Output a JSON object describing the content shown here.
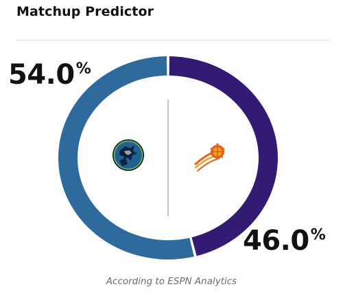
{
  "widget": {
    "title": "Matchup Predictor",
    "footnote": "According to ESPN Analytics"
  },
  "teams": {
    "left": {
      "logo_icon": "timberwolves-logo-icon",
      "win_probability": 54.0,
      "pct_value": "54.0",
      "pct_sign": "%",
      "color": "#2f6a9c"
    },
    "right": {
      "logo_icon": "suns-logo-icon",
      "win_probability": 46.0,
      "pct_value": "46.0",
      "pct_sign": "%",
      "color": "#331a73"
    }
  },
  "colors": {
    "divider_line": "#b0b0b0",
    "gap": "#ffffff"
  }
}
